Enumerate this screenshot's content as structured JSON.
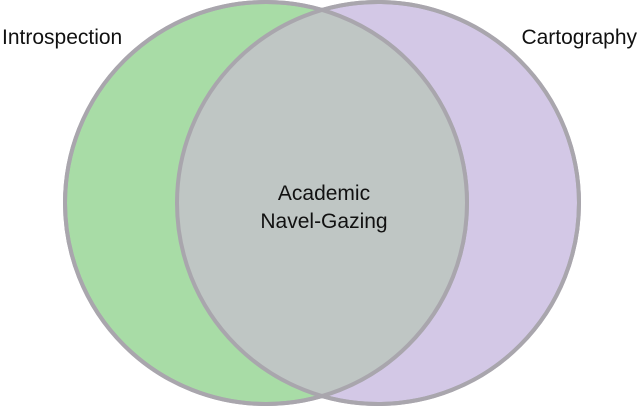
{
  "diagram": {
    "type": "venn",
    "sets": [
      {
        "label": "Introspection",
        "color": "#a8dca6"
      },
      {
        "label": "Cartography",
        "color": "#d3c8e6"
      }
    ],
    "intersection": {
      "line1": "Academic",
      "line2": "Navel-Gazing"
    },
    "outline_color": "#a9a6ad",
    "overlap_color": "#bfc6c4"
  }
}
